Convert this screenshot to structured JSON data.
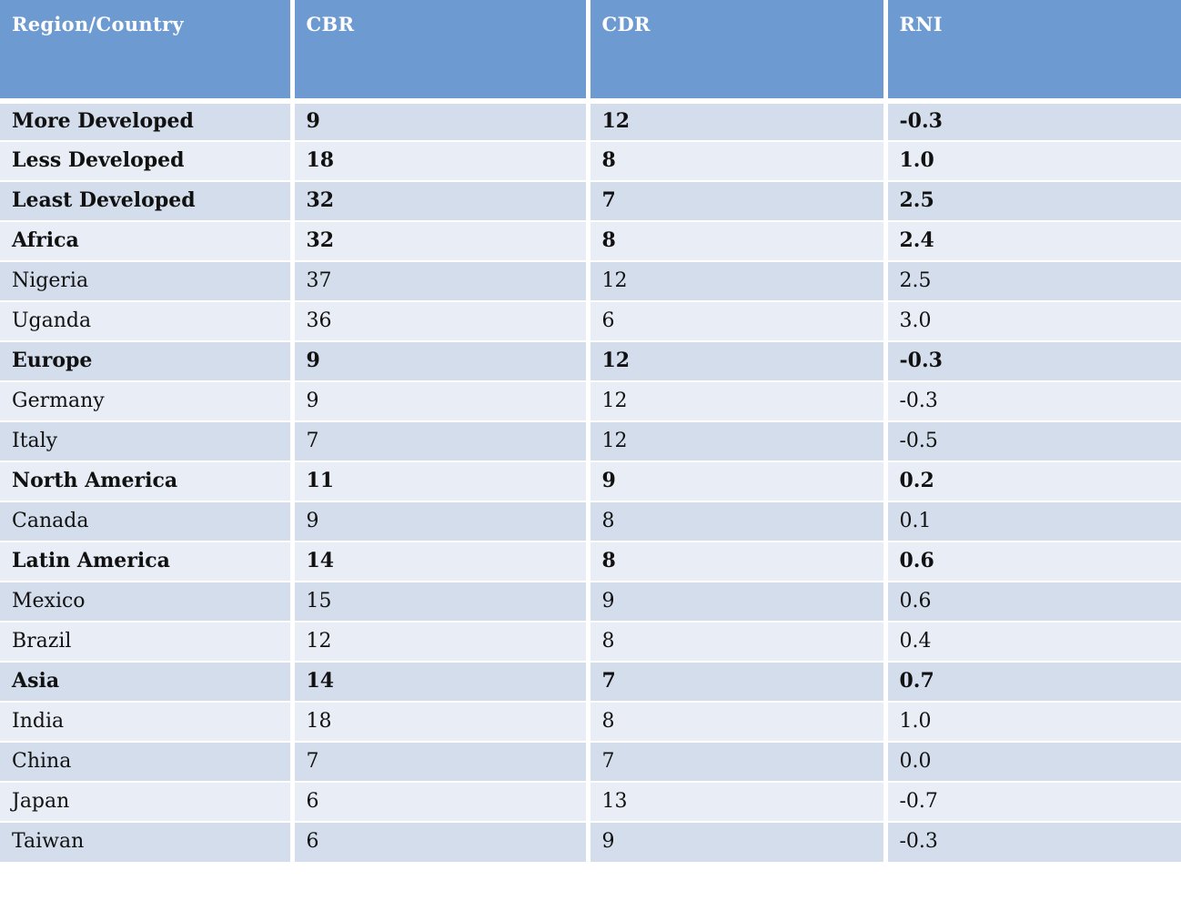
{
  "colors": {
    "header_bg": "#6C9AD1",
    "header_text": "#FFFFFF",
    "row_dark": "#D3DDEB",
    "row_light": "#E9EDF5",
    "body_text": "#111111",
    "grid": "#FFFFFF"
  },
  "table": {
    "columns": [
      "Region/Country",
      "CBR",
      "CDR",
      "RNI"
    ],
    "rows": [
      {
        "label": "More Developed",
        "cbr": "9",
        "cdr": "12",
        "rni": "-0.3",
        "bold": true
      },
      {
        "label": "Less Developed",
        "cbr": "18",
        "cdr": "8",
        "rni": "1.0",
        "bold": true
      },
      {
        "label": "Least Developed",
        "cbr": "32",
        "cdr": "7",
        "rni": "2.5",
        "bold": true
      },
      {
        "label": "Africa",
        "cbr": "32",
        "cdr": "8",
        "rni": "2.4",
        "bold": true
      },
      {
        "label": "Nigeria",
        "cbr": "37",
        "cdr": "12",
        "rni": "2.5",
        "bold": false
      },
      {
        "label": "Uganda",
        "cbr": "36",
        "cdr": "6",
        "rni": "3.0",
        "bold": false
      },
      {
        "label": "Europe",
        "cbr": "9",
        "cdr": "12",
        "rni": "-0.3",
        "bold": true
      },
      {
        "label": "Germany",
        "cbr": "9",
        "cdr": "12",
        "rni": "-0.3",
        "bold": false
      },
      {
        "label": "Italy",
        "cbr": "7",
        "cdr": "12",
        "rni": "-0.5",
        "bold": false
      },
      {
        "label": "North America",
        "cbr": "11",
        "cdr": "9",
        "rni": "0.2",
        "bold": true
      },
      {
        "label": "Canada",
        "cbr": "9",
        "cdr": "8",
        "rni": "0.1",
        "bold": false
      },
      {
        "label": "Latin America",
        "cbr": "14",
        "cdr": "8",
        "rni": "0.6",
        "bold": true
      },
      {
        "label": "Mexico",
        "cbr": "15",
        "cdr": "9",
        "rni": "0.6",
        "bold": false
      },
      {
        "label": "Brazil",
        "cbr": "12",
        "cdr": "8",
        "rni": "0.4",
        "bold": false
      },
      {
        "label": "Asia",
        "cbr": "14",
        "cdr": "7",
        "rni": "0.7",
        "bold": true
      },
      {
        "label": "India",
        "cbr": "18",
        "cdr": "8",
        "rni": "1.0",
        "bold": false
      },
      {
        "label": "China",
        "cbr": "7",
        "cdr": "7",
        "rni": "0.0",
        "bold": false
      },
      {
        "label": "Japan",
        "cbr": "6",
        "cdr": "13",
        "rni": "-0.7",
        "bold": false
      },
      {
        "label": "Taiwan",
        "cbr": "6",
        "cdr": "9",
        "rni": "-0.3",
        "bold": false
      }
    ]
  },
  "chart_data": {
    "type": "table",
    "title": "",
    "columns": [
      "Region/Country",
      "CBR",
      "CDR",
      "RNI"
    ],
    "rows": [
      [
        "More Developed",
        9,
        12,
        -0.3
      ],
      [
        "Less Developed",
        18,
        8,
        1.0
      ],
      [
        "Least Developed",
        32,
        7,
        2.5
      ],
      [
        "Africa",
        32,
        8,
        2.4
      ],
      [
        "Nigeria",
        37,
        12,
        2.5
      ],
      [
        "Uganda",
        36,
        6,
        3.0
      ],
      [
        "Europe",
        9,
        12,
        -0.3
      ],
      [
        "Germany",
        9,
        12,
        -0.3
      ],
      [
        "Italy",
        7,
        12,
        -0.5
      ],
      [
        "North America",
        11,
        9,
        0.2
      ],
      [
        "Canada",
        9,
        8,
        0.1
      ],
      [
        "Latin America",
        14,
        8,
        0.6
      ],
      [
        "Mexico",
        15,
        9,
        0.6
      ],
      [
        "Brazil",
        12,
        8,
        0.4
      ],
      [
        "Asia",
        14,
        7,
        0.7
      ],
      [
        "India",
        18,
        8,
        1.0
      ],
      [
        "China",
        7,
        7,
        0.0
      ],
      [
        "Japan",
        6,
        13,
        -0.7
      ],
      [
        "Taiwan",
        6,
        9,
        -0.3
      ]
    ],
    "bold_rows": [
      "More Developed",
      "Less Developed",
      "Least Developed",
      "Africa",
      "Europe",
      "North America",
      "Latin America",
      "Asia"
    ]
  }
}
